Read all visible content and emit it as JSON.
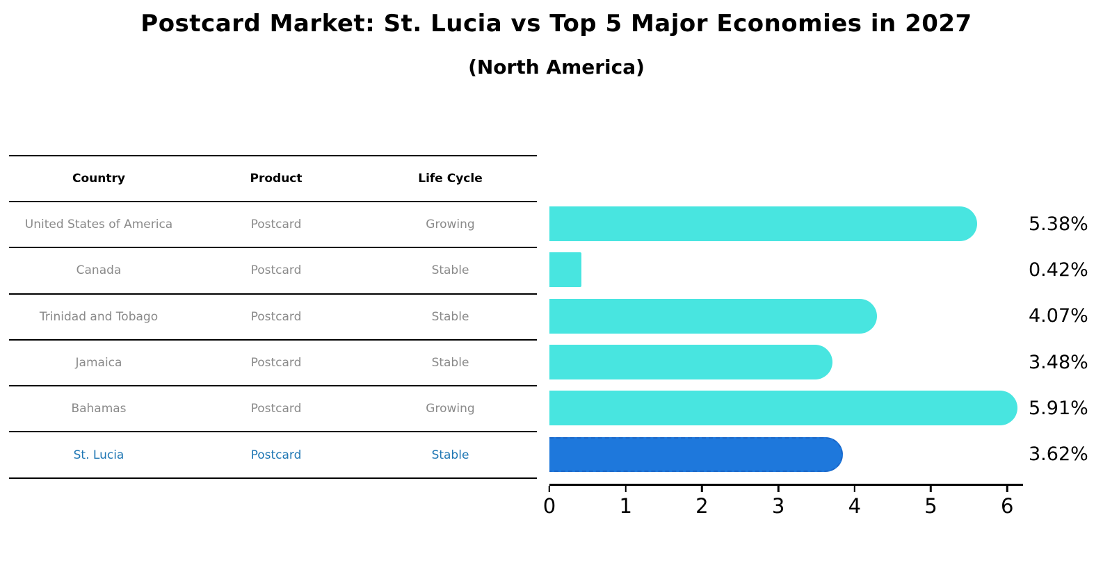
{
  "title": "Postcard Market: St. Lucia vs Top 5 Major Economies in 2027",
  "subtitle": "(North America)",
  "table": {
    "headers": [
      "Country",
      "Product",
      "Life Cycle"
    ],
    "rows": [
      {
        "country": "United States of America",
        "product": "Postcard",
        "life_cycle": "Growing"
      },
      {
        "country": "Canada",
        "product": "Postcard",
        "life_cycle": "Stable"
      },
      {
        "country": "Trinidad and Tobago",
        "product": "Postcard",
        "life_cycle": "Stable"
      },
      {
        "country": "Jamaica",
        "product": "Postcard",
        "life_cycle": "Stable"
      },
      {
        "country": "Bahamas",
        "product": "Postcard",
        "life_cycle": "Growing"
      },
      {
        "country": "St. Lucia",
        "product": "Postcard",
        "life_cycle": "Stable"
      }
    ]
  },
  "chart_data": {
    "type": "bar",
    "orientation": "horizontal",
    "title": "Postcard Market: St. Lucia vs Top 5 Major Economies in 2027",
    "subtitle": "(North America)",
    "categories": [
      "United States of America",
      "Canada",
      "Trinidad and Tobago",
      "Jamaica",
      "Bahamas",
      "St. Lucia"
    ],
    "values": [
      5.38,
      0.42,
      4.07,
      3.48,
      5.91,
      3.62
    ],
    "value_labels": [
      "5.38%",
      "0.42%",
      "4.07%",
      "3.48%",
      "5.91%",
      "3.62%"
    ],
    "x_ticks": [
      "0",
      "1",
      "2",
      "3",
      "4",
      "5",
      "6"
    ],
    "xlim": [
      0,
      6.2
    ],
    "grid": false,
    "highlight_index": 5,
    "bar_color": "#48E5E0",
    "highlight_bar_color": "#1E78DC",
    "highlight_border_color": "#1A66C8",
    "highlight_text_color": "#1F77B4"
  }
}
